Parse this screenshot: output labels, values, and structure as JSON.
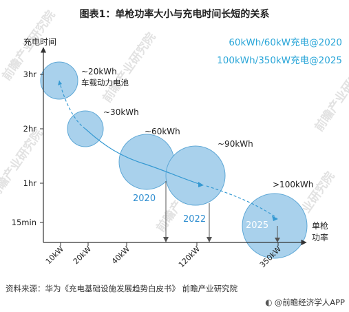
{
  "title": "图表1：单枪功率大小与充电时间长短的关系",
  "legend": {
    "line1": "60kWh/60kW充电@2020",
    "line2": "100kWh/350kW充电@2025",
    "color": "#2aa6d8"
  },
  "colors": {
    "bubble_fill": "#a9d1ec",
    "bubble_stroke": "#5fa8d6",
    "curve": "#3599d2",
    "axis": "#333333",
    "year_label": "#2f8ed0",
    "drop_line": "#555555"
  },
  "watermark": {
    "text": "前瞻产业研究院"
  },
  "chart_data": {
    "type": "scatter",
    "title": "",
    "xlabel": "单枪功率",
    "ylabel": "充电时间",
    "x_ticks": [
      "10kW",
      "20kW",
      "40kW",
      "120kW",
      "350kW"
    ],
    "y_ticks": [
      "3hr",
      "2hr",
      "1hr",
      "15min"
    ],
    "bubbles": [
      {
        "power": "10kW",
        "time": "3hr",
        "label": "~20kWh\n车载动力电池"
      },
      {
        "power": "20kW",
        "time": "2hr",
        "label": "~30kWh"
      },
      {
        "power": "40kW",
        "time": "~1.4hr",
        "label": "~60kWh"
      },
      {
        "power": "120kW",
        "time": "~1hr",
        "label": "~90kWh"
      },
      {
        "power": "350kW",
        "time": "15min",
        "label": ">100kWh"
      }
    ],
    "annotations": [
      {
        "text": "2020",
        "at_power": "40kW"
      },
      {
        "text": "2022",
        "at_power": "120kW"
      },
      {
        "text": "2025",
        "at_power": "350kW"
      }
    ],
    "grid": false,
    "legend_position": "top-right"
  },
  "footer": {
    "source": "资料来源：华为《充电基础设施发展趋势白皮书》 前瞻产业研究院",
    "brand": "@前瞻经济学人APP"
  }
}
